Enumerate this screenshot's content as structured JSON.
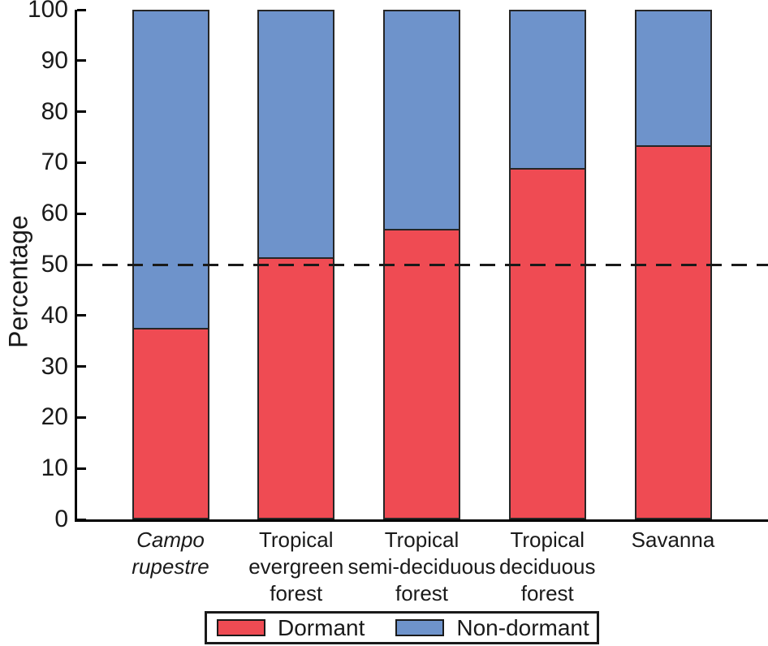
{
  "chart_data": {
    "type": "bar",
    "stacked": true,
    "title": "",
    "xlabel": "",
    "ylabel": "Percentage",
    "ylim": [
      0,
      100
    ],
    "yticks": [
      0,
      10,
      20,
      30,
      40,
      50,
      60,
      70,
      80,
      90,
      100
    ],
    "reference_line_y": 50,
    "reference_line_style": "dashed",
    "grid": false,
    "legend_position": "bottom-center",
    "categories": [
      {
        "label": "Campo\nrupestre",
        "italic": true
      },
      {
        "label": "Tropical\nevergreen\nforest",
        "italic": false
      },
      {
        "label": "Tropical\nsemi-deciduous\nforest",
        "italic": false
      },
      {
        "label": "Tropical\ndeciduous\nforest",
        "italic": false
      },
      {
        "label": "Savanna",
        "italic": false
      }
    ],
    "series": [
      {
        "name": "Dormant",
        "color": "#EF4B53",
        "stack_position": "bottom",
        "values": [
          37.5,
          51.5,
          57,
          69,
          73.5
        ]
      },
      {
        "name": "Non-dormant",
        "color": "#6E93CB",
        "stack_position": "top",
        "values": [
          62.5,
          48.5,
          43,
          31,
          26.5
        ]
      }
    ]
  },
  "colors": {
    "axis": "#000000",
    "text": "#1a1a1a",
    "bar_outline": "#262626",
    "background": "#ffffff",
    "dormant_red": "#EF4B53",
    "nondormant_blue": "#6E93CB"
  }
}
